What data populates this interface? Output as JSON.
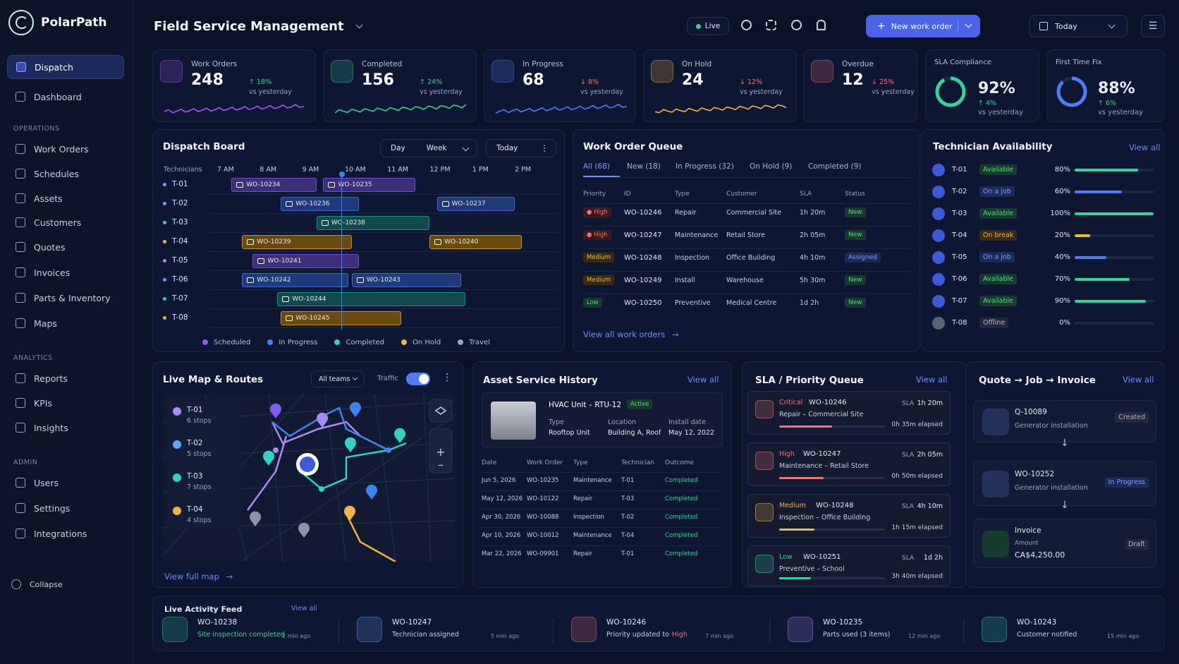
{
  "app": {
    "name": "PolarPath",
    "page_title": "Field Service Management"
  },
  "sidebar": {
    "primary": [
      {
        "label": "Dispatch",
        "active": true
      },
      {
        "label": "Dashboard"
      }
    ],
    "sections": [
      {
        "title": "OPERATIONS",
        "items": [
          "Work Orders",
          "Schedules",
          "Assets",
          "Customers",
          "Quotes",
          "Invoices",
          "Parts & Inventory",
          "Maps"
        ]
      },
      {
        "title": "ANALYTICS",
        "items": [
          "Reports",
          "KPIs",
          "Insights"
        ]
      },
      {
        "title": "ADMIN",
        "items": [
          "Users",
          "Settings",
          "Integrations"
        ]
      }
    ],
    "collapse": "Collapse"
  },
  "topbar": {
    "live": "Live",
    "new_work_order": "New work order",
    "date": "Today"
  },
  "kpis": [
    {
      "label": "Work Orders",
      "value": "248",
      "delta": "18%",
      "dir": "up",
      "sub": "vs yesterday",
      "color": "#a855f7"
    },
    {
      "label": "Completed",
      "value": "156",
      "delta": "24%",
      "dir": "up",
      "sub": "vs yesterday",
      "color": "#34d399"
    },
    {
      "label": "In Progress",
      "value": "68",
      "delta": "8%",
      "dir": "down",
      "sub": "vs yesterday",
      "color": "#4f7cff"
    },
    {
      "label": "On Hold",
      "value": "24",
      "delta": "12%",
      "dir": "down",
      "sub": "vs yesterday",
      "color": "#f5b342"
    },
    {
      "label": "Overdue",
      "value": "12",
      "delta": "25%",
      "dir": "down",
      "sub": "vs yesterday",
      "color": "#f87171"
    }
  ],
  "sla_compliance": {
    "label": "SLA Compliance",
    "value": "92%",
    "delta": "4%",
    "sub": "vs yesterday",
    "pct": 0.92
  },
  "first_time_fix": {
    "label": "First Time Fix",
    "value": "88%",
    "delta": "6%",
    "sub": "vs yesterday",
    "pct": 0.88
  },
  "dispatch": {
    "title": "Dispatch Board",
    "view_day": "Day",
    "view_week": "Week",
    "date": "Today",
    "col_label": "Technicians",
    "hours": [
      "7 AM",
      "8 AM",
      "9 AM",
      "10 AM",
      "11 AM",
      "12 PM",
      "1 PM",
      "2 PM"
    ],
    "techs": [
      "T-01",
      "T-02",
      "T-03",
      "T-04",
      "T-05",
      "T-06",
      "T-07",
      "T-08"
    ],
    "tech_colors": [
      "#a78bfa",
      "#60a5fa",
      "#2dd4bf",
      "#f5b342",
      "#a78bfa",
      "#60a5fa",
      "#34d399",
      "#f5b342"
    ],
    "legend": [
      "Scheduled",
      "In Progress",
      "Completed",
      "On Hold",
      "Travel"
    ],
    "legend_colors": [
      "#8b5cf6",
      "#4f7cff",
      "#2dd4bf",
      "#f5b342",
      "#9aa5bf"
    ],
    "jobs": [
      {
        "row": 0,
        "id": "WO-10234",
        "start": 7.17,
        "end": 9.17,
        "kind": "sch"
      },
      {
        "row": 0,
        "id": "WO-10235",
        "start": 9.33,
        "end": 11.5,
        "kind": "sch"
      },
      {
        "row": 1,
        "id": "WO-10236",
        "start": 8.33,
        "end": 10.17,
        "kind": "prog"
      },
      {
        "row": 1,
        "id": "WO-10237",
        "start": 12.0,
        "end": 13.83,
        "kind": "prog"
      },
      {
        "row": 2,
        "id": "WO-10238",
        "start": 9.17,
        "end": 11.83,
        "kind": "comp"
      },
      {
        "row": 3,
        "id": "WO-10239",
        "start": 7.42,
        "end": 10.0,
        "kind": "hold"
      },
      {
        "row": 3,
        "id": "WO-10240",
        "start": 11.83,
        "end": 14.0,
        "kind": "hold"
      },
      {
        "row": 4,
        "id": "WO-10241",
        "start": 7.67,
        "end": 10.17,
        "kind": "sch"
      },
      {
        "row": 5,
        "id": "WO-10242",
        "start": 7.42,
        "end": 9.92,
        "kind": "prog"
      },
      {
        "row": 5,
        "id": "WO-10243",
        "start": 10.0,
        "end": 12.58,
        "kind": "prog"
      },
      {
        "row": 6,
        "id": "WO-10244",
        "start": 8.25,
        "end": 12.67,
        "kind": "comp"
      },
      {
        "row": 7,
        "id": "WO-10245",
        "start": 8.33,
        "end": 11.17,
        "kind": "hold"
      }
    ],
    "now": 9.75
  },
  "queue": {
    "title": "Work Order Queue",
    "tabs": [
      "All (68)",
      "New (18)",
      "In Progress (32)",
      "On Hold (9)",
      "Completed (9)"
    ],
    "headers": [
      "Priority",
      "ID",
      "Type",
      "Customer",
      "SLA",
      "Status"
    ],
    "rows": [
      {
        "priority": "High",
        "id": "WO-10246",
        "type": "Repair",
        "customer": "Commercial Site",
        "sla": "1h 20m",
        "status": "New"
      },
      {
        "priority": "High",
        "id": "WO-10247",
        "type": "Maintenance",
        "customer": "Retail Store",
        "sla": "2h 05m",
        "status": "New"
      },
      {
        "priority": "Medium",
        "id": "WO-10248",
        "type": "Inspection",
        "customer": "Office Building",
        "sla": "4h 10m",
        "status": "Assigned"
      },
      {
        "priority": "Medium",
        "id": "WO-10249",
        "type": "Install",
        "customer": "Warehouse",
        "sla": "5h 30m",
        "status": "New"
      },
      {
        "priority": "Low",
        "id": "WO-10250",
        "type": "Preventive",
        "customer": "Medical Centre",
        "sla": "1d 2h",
        "status": "New"
      }
    ],
    "view_all": "View all work orders"
  },
  "techs": {
    "title": "Technician Availability",
    "view_all": "View all",
    "rows": [
      {
        "id": "T-01",
        "status": "Available",
        "kind": "av",
        "pct": 80,
        "pct_label": "80%",
        "color": "#34d399"
      },
      {
        "id": "T-02",
        "status": "On a job",
        "kind": "job",
        "pct": 60,
        "pct_label": "60%",
        "color": "#4f7cff"
      },
      {
        "id": "T-03",
        "status": "Available",
        "kind": "av",
        "pct": 100,
        "pct_label": "100%",
        "color": "#34d399"
      },
      {
        "id": "T-04",
        "status": "On break",
        "kind": "brk",
        "pct": 20,
        "pct_label": "20%",
        "color": "#f5b342"
      },
      {
        "id": "T-05",
        "status": "On a job",
        "kind": "job",
        "pct": 40,
        "pct_label": "40%",
        "color": "#4f7cff"
      },
      {
        "id": "T-06",
        "status": "Available",
        "kind": "av",
        "pct": 70,
        "pct_label": "70%",
        "color": "#34d399"
      },
      {
        "id": "T-07",
        "status": "Available",
        "kind": "av",
        "pct": 90,
        "pct_label": "90%",
        "color": "#34d399"
      },
      {
        "id": "T-08",
        "status": "Offline",
        "kind": "off",
        "pct": 0,
        "pct_label": "0%",
        "color": "#6b7280"
      }
    ]
  },
  "map": {
    "title": "Live Map & Routes",
    "filter": "All teams",
    "traffic": "Traffic",
    "teams": [
      {
        "id": "T-01",
        "stops": "6 stops",
        "color": "#a78bfa"
      },
      {
        "id": "T-02",
        "stops": "5 stops",
        "color": "#60a5fa"
      },
      {
        "id": "T-03",
        "stops": "7 stops",
        "color": "#2dd4bf"
      },
      {
        "id": "T-04",
        "stops": "4 stops",
        "color": "#f5b342"
      }
    ],
    "view_full": "View full map"
  },
  "assets": {
    "title": "Asset Service History",
    "view_all": "View all",
    "asset_name": "HVAC Unit – RTU-12",
    "asset_status": "Active",
    "type_label": "Type",
    "type": "Rooftop Unit",
    "location_label": "Location",
    "location": "Building A, Roof",
    "install_label": "Install date",
    "install": "May 12, 2022",
    "headers": [
      "Date",
      "Work Order",
      "Type",
      "Technician",
      "Outcome"
    ],
    "rows": [
      {
        "date": "Jun 5, 2026",
        "wo": "WO-10235",
        "type": "Maintenance",
        "tech": "T-01",
        "outcome": "Completed"
      },
      {
        "date": "May 12, 2026",
        "wo": "WO-10122",
        "type": "Repair",
        "tech": "T-03",
        "outcome": "Completed"
      },
      {
        "date": "Apr 30, 2026",
        "wo": "WO-10088",
        "type": "Inspection",
        "tech": "T-02",
        "outcome": "Completed"
      },
      {
        "date": "Apr 10, 2026",
        "wo": "WO-10012",
        "type": "Maintenance",
        "tech": "T-04",
        "outcome": "Completed"
      },
      {
        "date": "Mar 22, 2026",
        "wo": "WO-09901",
        "type": "Repair",
        "tech": "T-01",
        "outcome": "Completed"
      }
    ]
  },
  "sla": {
    "title": "SLA / Priority Queue",
    "view_all": "View all",
    "items": [
      {
        "level": "Critical",
        "id": "WO-10246",
        "desc": "Repair – Commercial Site",
        "sla_label": "SLA",
        "sla": "1h 20m",
        "elapsed": "0h 35m elapsed",
        "pct": 0.5,
        "color": "#f87171"
      },
      {
        "level": "High",
        "id": "WO-10247",
        "desc": "Maintenance – Retail Store",
        "sla_label": "SLA",
        "sla": "2h 05m",
        "elapsed": "0h 50m elapsed",
        "pct": 0.42,
        "color": "#f87171"
      },
      {
        "level": "Medium",
        "id": "WO-10248",
        "desc": "Inspection – Office Building",
        "sla_label": "SLA",
        "sla": "4h 10m",
        "elapsed": "1h 15m elapsed",
        "pct": 0.33,
        "color": "#f5b342"
      },
      {
        "level": "Low",
        "id": "WO-10251",
        "desc": "Preventive – School",
        "sla_label": "SLA",
        "sla": "1d 2h",
        "elapsed": "3h 40m elapsed",
        "pct": 0.3,
        "color": "#34d399"
      }
    ]
  },
  "flow": {
    "title": "Quote → Job → Invoice",
    "view_all": "View all",
    "quote": {
      "id": "Q-10089",
      "desc": "Generator installation",
      "status": "Created"
    },
    "job": {
      "id": "WO-10252",
      "desc": "Generator installation",
      "status": "In Progress"
    },
    "invoice": {
      "title": "Invoice",
      "amount_label": "Amount",
      "amount": "CA$4,250.00",
      "status": "Draft"
    }
  },
  "activity": {
    "title": "Live Activity Feed",
    "view_all": "View all",
    "items": [
      {
        "id": "WO-10238",
        "text": "Site inspection completed",
        "time": "2 min ago",
        "color": "#34d399"
      },
      {
        "id": "WO-10247",
        "text": "Technician assigned",
        "time": "5 min ago",
        "color": "#60a5fa"
      },
      {
        "id": "WO-10246",
        "text": "Priority updated to",
        "highlight": "High",
        "time": "7 min ago",
        "color": "#f87171"
      },
      {
        "id": "WO-10235",
        "text": "Parts used (3 items)",
        "time": "12 min ago",
        "color": "#a78bfa"
      },
      {
        "id": "WO-10243",
        "text": "Customer notified",
        "time": "15 min ago",
        "color": "#2dd4bf"
      }
    ]
  }
}
